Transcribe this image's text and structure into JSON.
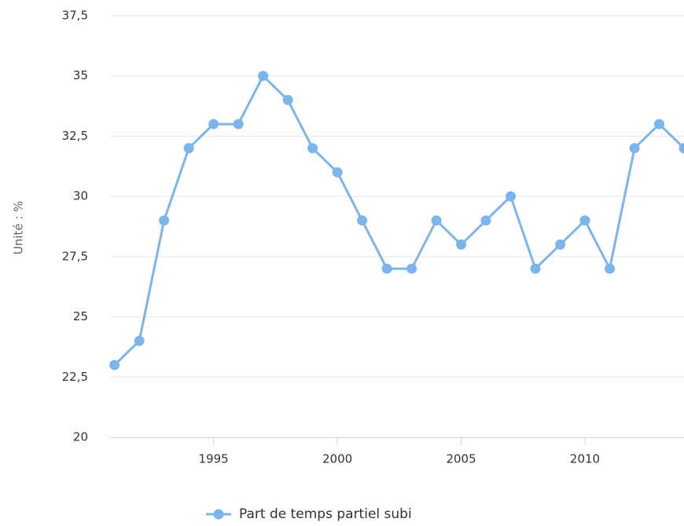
{
  "chart_data": {
    "type": "line",
    "y_label": "Unité : %",
    "x": [
      1991,
      1992,
      1993,
      1994,
      1995,
      1996,
      1997,
      1998,
      1999,
      2000,
      2001,
      2002,
      2003,
      2004,
      2005,
      2006,
      2007,
      2008,
      2009,
      2010,
      2011,
      2012,
      2013,
      2014
    ],
    "series": [
      {
        "name": "Part de temps partiel subi",
        "color": "#7cb5ec",
        "values": [
          23,
          24,
          29,
          32,
          33,
          33,
          35,
          34,
          32,
          31,
          29,
          27,
          27,
          29,
          28,
          29,
          30,
          27,
          28,
          29,
          27,
          32,
          33,
          32
        ]
      }
    ],
    "xlim": [
      1990.82,
      2014
    ],
    "xticks": [
      1995,
      2000,
      2005,
      2010
    ],
    "ylim": [
      20,
      37.5
    ],
    "yticks": [
      20,
      {
        "value": 22.5,
        "label": "22,5"
      },
      25,
      {
        "value": 27.5,
        "label": "27,5"
      },
      30,
      {
        "value": 32.5,
        "label": "32,5"
      },
      35,
      {
        "value": 37.5,
        "label": "37,5"
      }
    ],
    "grid": true,
    "legend": "bottom"
  }
}
